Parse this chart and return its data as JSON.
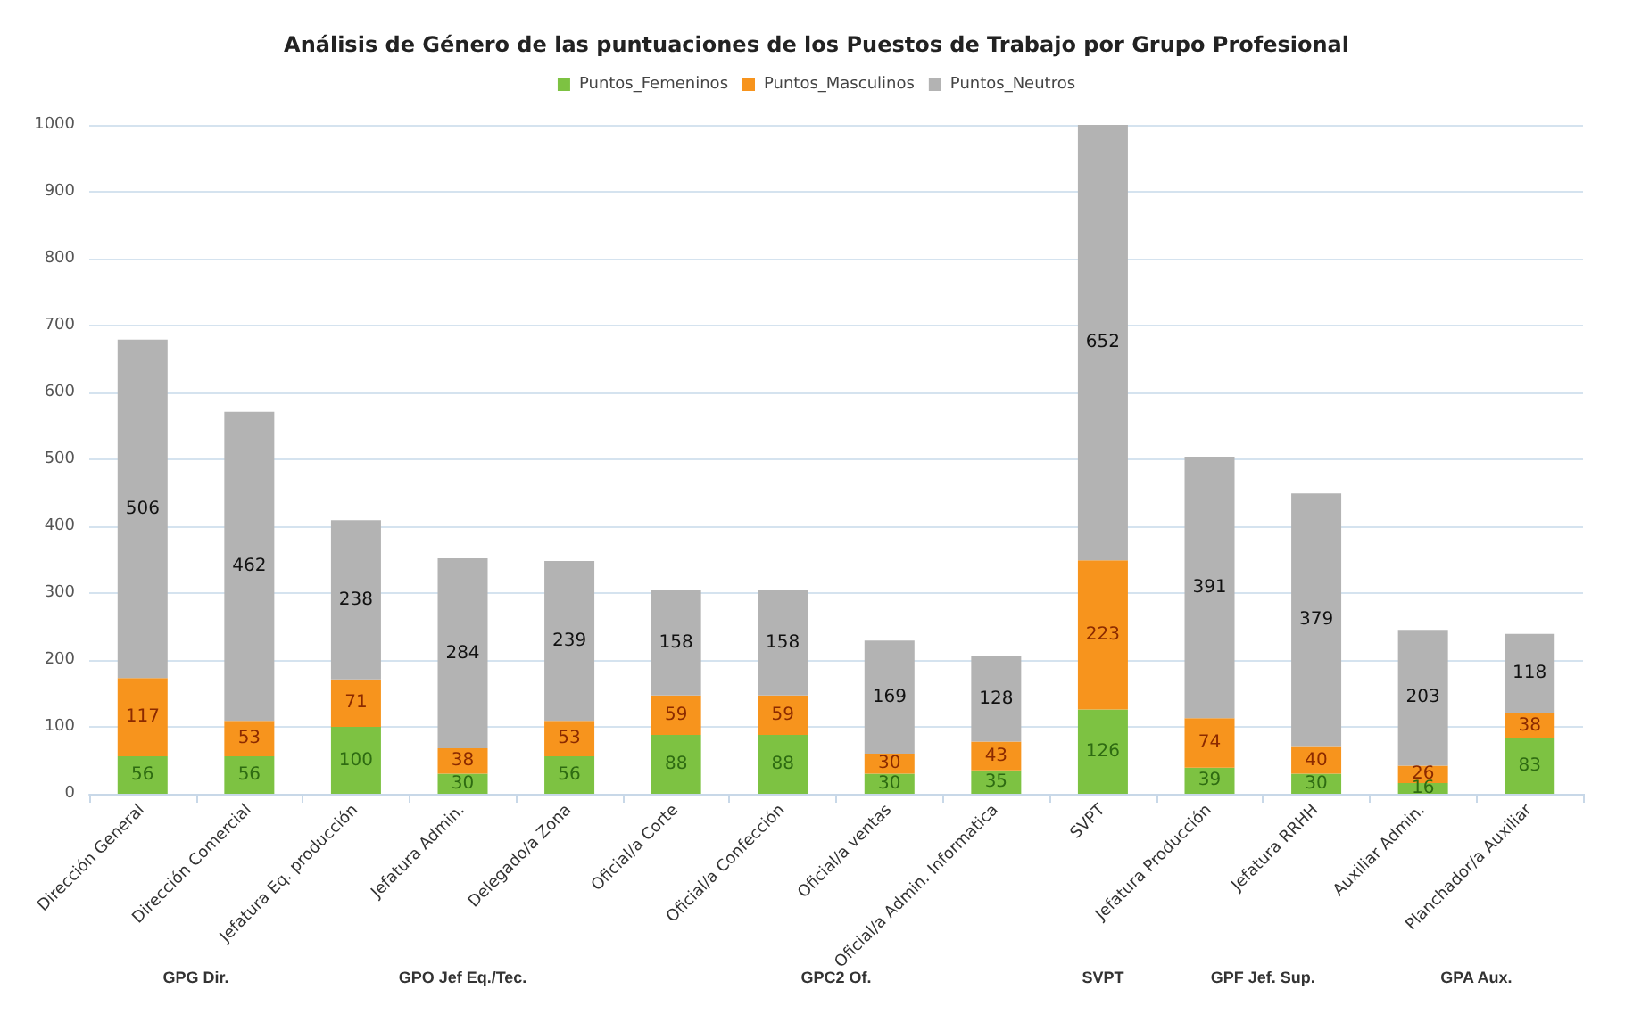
{
  "chart_data": {
    "type": "bar",
    "title": "Análisis de Género de las puntuaciones de los Puestos de Trabajo por Grupo Profesional",
    "categories": [
      "Dirección General",
      "Dirección Comercial",
      "Jefatura Eq. producción",
      "Jefatura Admin.",
      "Delegado/a Zona",
      "Oficial/a Corte",
      "Oficial/a Confección",
      "Oficial/a ventas",
      "Oficial/a Admin. Informatica",
      "SVPT",
      "Jefatura Producción",
      "Jefatura RRHH",
      "Auxiliar Admin.",
      "Planchador/a Auxiliar"
    ],
    "stacked": true,
    "series": [
      {
        "name": "Puntos_Femeninos",
        "color": "#7dc242",
        "values": [
          56,
          56,
          100,
          30,
          56,
          88,
          88,
          30,
          35,
          126,
          39,
          30,
          16,
          83
        ]
      },
      {
        "name": "Puntos_Masculinos",
        "color": "#f7941d",
        "values": [
          117,
          53,
          71,
          38,
          53,
          59,
          59,
          30,
          43,
          223,
          74,
          40,
          26,
          38
        ]
      },
      {
        "name": "Puntos_Neutros",
        "color": "#b3b3b3",
        "values": [
          506,
          462,
          238,
          284,
          239,
          158,
          158,
          169,
          128,
          652,
          391,
          379,
          203,
          118
        ]
      }
    ],
    "ylim": [
      0,
      1000
    ],
    "yticks": [
      0,
      100,
      200,
      300,
      400,
      500,
      600,
      700,
      800,
      900,
      1000
    ],
    "grid": "y",
    "legend": "top",
    "data_labels": true,
    "annotations": [
      "GPG Dir.",
      "GPO Jef Eq./Tec.",
      "GPC2 Of.",
      "SVPT",
      "GPF Jef. Sup.",
      "GPA Aux."
    ]
  }
}
